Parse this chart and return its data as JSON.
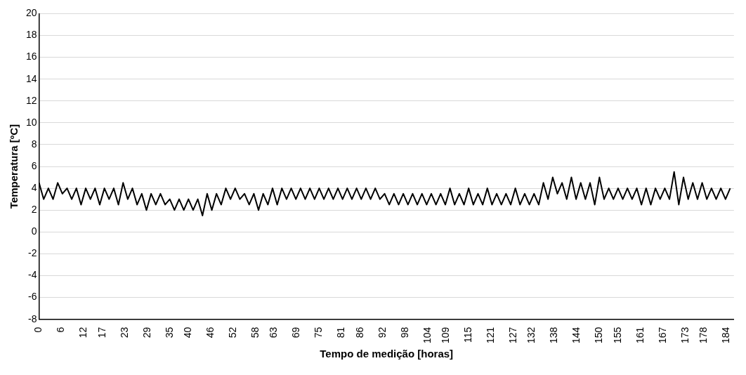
{
  "chart_data": {
    "type": "line",
    "xlabel": "Tempo de medição [horas]",
    "ylabel": "Temperatura [ºC]",
    "x": [
      0,
      1.25,
      2.5,
      3.75,
      5,
      6.25,
      7.5,
      8.75,
      10,
      11.25,
      12.5,
      13.75,
      15,
      16.25,
      17.5,
      18.75,
      20,
      21.25,
      22.5,
      23.75,
      25,
      26.25,
      27.5,
      28.75,
      30,
      31.25,
      32.5,
      33.75,
      35,
      36.25,
      37.5,
      38.75,
      40,
      41.25,
      42.5,
      43.75,
      45,
      46.25,
      47.5,
      48.75,
      50,
      51.25,
      52.5,
      53.75,
      55,
      56.25,
      57.5,
      58.75,
      60,
      61.25,
      62.5,
      63.75,
      65,
      66.25,
      67.5,
      68.75,
      70,
      71.25,
      72.5,
      73.75,
      75,
      76.25,
      77.5,
      78.75,
      80,
      81.25,
      82.5,
      83.75,
      85,
      86.25,
      87.5,
      88.75,
      90,
      91.25,
      92.5,
      93.75,
      95,
      96.25,
      97.5,
      98.75,
      100,
      101.25,
      102.5,
      103.75,
      105,
      106.25,
      107.5,
      108.75,
      110,
      111.25,
      112.5,
      113.75,
      115,
      116.25,
      117.5,
      118.75,
      120,
      121.25,
      122.5,
      123.75,
      125,
      126.25,
      127.5,
      128.75,
      130,
      131.25,
      132.5,
      133.75,
      135,
      136.25,
      137.5,
      138.75,
      140,
      141.25,
      142.5,
      143.75,
      145,
      146.25,
      147.5,
      148.75,
      150,
      151.25,
      152.5,
      153.75,
      155,
      156.25,
      157.5,
      158.75,
      160,
      161.25,
      162.5,
      163.75,
      165,
      166.25,
      167.5,
      168.75,
      170,
      171.25,
      172.5,
      173.75,
      175,
      176.25,
      177.5,
      178.75,
      180,
      181.25,
      182.5,
      183.75,
      185
    ],
    "series": [
      {
        "color": "#000000",
        "values": [
          4.5,
          3,
          4,
          3,
          4.5,
          3.5,
          4,
          3,
          4,
          2.5,
          4,
          3,
          4,
          2.5,
          4,
          3,
          4,
          2.5,
          4.5,
          3,
          4,
          2.5,
          3.5,
          2,
          3.5,
          2.5,
          3.5,
          2.5,
          3,
          2,
          3,
          2,
          3,
          2,
          3,
          1.5,
          3.5,
          2,
          3.5,
          2.5,
          4,
          3,
          4,
          3,
          3.5,
          2.5,
          3.5,
          2,
          3.5,
          2.5,
          4,
          2.5,
          4,
          3,
          4,
          3,
          4,
          3,
          4,
          3,
          4,
          3,
          4,
          3,
          4,
          3,
          4,
          3,
          4,
          3,
          4,
          3,
          4,
          3,
          3.5,
          2.5,
          3.5,
          2.5,
          3.5,
          2.5,
          3.5,
          2.5,
          3.5,
          2.5,
          3.5,
          2.5,
          3.5,
          2.5,
          4,
          2.5,
          3.5,
          2.5,
          4,
          2.5,
          3.5,
          2.5,
          4,
          2.5,
          3.5,
          2.5,
          3.5,
          2.5,
          4,
          2.5,
          3.5,
          2.5,
          3.5,
          2.5,
          4.5,
          3,
          5,
          3.5,
          4.5,
          3,
          5,
          3,
          4.5,
          3,
          4.5,
          2.5,
          5,
          3,
          4,
          3,
          4,
          3,
          4,
          3,
          4,
          2.5,
          4,
          2.5,
          4,
          3,
          4,
          3,
          5.5,
          2.5,
          5,
          3,
          4.5,
          3,
          4.5,
          3,
          4,
          3,
          4,
          3,
          4
        ]
      }
    ],
    "xlim": [
      0,
      186
    ],
    "xticks": [
      0,
      6,
      12,
      17,
      23,
      29,
      35,
      40,
      46,
      52,
      58,
      63,
      69,
      75,
      81,
      86,
      92,
      98,
      104,
      109,
      115,
      121,
      127,
      132,
      138,
      144,
      150,
      155,
      161,
      167,
      173,
      178,
      184
    ],
    "ylim": [
      -8,
      20
    ],
    "yticks": [
      -8,
      -6,
      -4,
      -2,
      0,
      2,
      4,
      6,
      8,
      10,
      12,
      14,
      16,
      18,
      20
    ],
    "grid": "y",
    "legend": false,
    "marker": "none",
    "line_style": "solid"
  }
}
